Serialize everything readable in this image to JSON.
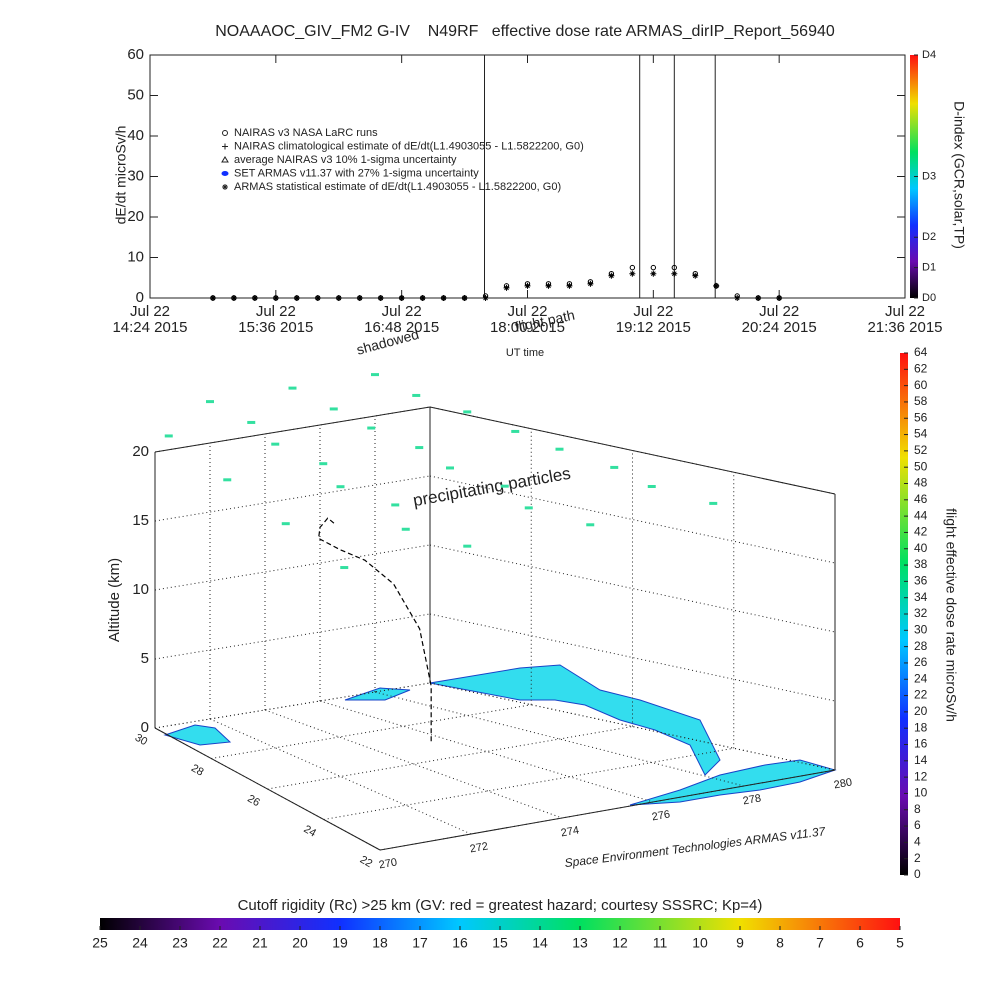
{
  "chart_data": [
    {
      "type": "line",
      "title": "NOAAAOC_GIV_FM2 G-IV    N49RF   effective dose rate ARMAS_dirIP_Report_56940",
      "ylabel": "dE/dt microSv/h",
      "xlabel": "UT time",
      "xlim": [
        14.4,
        21.6
      ],
      "xticks": [
        {
          "value": 14.4,
          "label": [
            "Jul 22",
            "14:24 2015"
          ]
        },
        {
          "value": 15.6,
          "label": [
            "Jul 22",
            "15:36 2015"
          ]
        },
        {
          "value": 16.8,
          "label": [
            "Jul 22",
            "16:48 2015"
          ]
        },
        {
          "value": 18.0,
          "label": [
            "Jul 22",
            "18:00 2015"
          ]
        },
        {
          "value": 19.2,
          "label": [
            "Jul 22",
            "19:12 2015"
          ]
        },
        {
          "value": 20.4,
          "label": [
            "Jul 22",
            "20:24 2015"
          ]
        },
        {
          "value": 21.6,
          "label": [
            "Jul 22",
            "21:36 2015"
          ]
        }
      ],
      "ylim": [
        0,
        60
      ],
      "yticks": [
        0,
        10,
        20,
        30,
        40,
        50,
        60
      ],
      "vlines": [
        17.59,
        19.07,
        19.4,
        19.79
      ],
      "legend_entries": [
        "NAIRAS v3 NASA LaRC runs",
        "NAIRAS climatological estimate of dE/dt(L1.4903055 - L1.5822200, G0)",
        "average NAIRAS v3 10% 1-sigma uncertainty",
        "SET ARMAS v11.37 with 27% 1-sigma uncertainty",
        "ARMAS statistical estimate of dE/dt(L1.4903055 - L1.5822200, G0)"
      ],
      "series": [
        {
          "color": "#000000",
          "marker": "circle",
          "x": [
            15.0,
            15.2,
            15.4,
            15.6,
            15.8,
            16.0,
            16.2,
            16.4,
            16.6,
            16.8,
            17.0,
            17.2,
            17.4,
            17.6,
            17.8,
            18.0,
            18.2,
            18.4,
            18.6,
            18.8,
            19.0,
            19.2,
            19.4,
            19.6,
            19.8,
            20.0,
            20.2,
            20.4
          ],
          "values": [
            0,
            0,
            0,
            0,
            0,
            0,
            0,
            0,
            0,
            0,
            0,
            0,
            0,
            0.5,
            3,
            3.5,
            3.5,
            3.5,
            4,
            6,
            7.5,
            7.5,
            7.5,
            6,
            3,
            0.5,
            0,
            0
          ]
        },
        {
          "color": "#000000",
          "marker": "star",
          "x": [
            15.0,
            15.2,
            15.4,
            15.6,
            15.8,
            16.0,
            16.2,
            16.4,
            16.6,
            16.8,
            17.0,
            17.2,
            17.4,
            17.6,
            17.8,
            18.0,
            18.2,
            18.4,
            18.6,
            18.8,
            19.0,
            19.2,
            19.4,
            19.6,
            19.8,
            20.0,
            20.2,
            20.4
          ],
          "values": [
            0,
            0,
            0,
            0,
            0,
            0,
            0,
            0,
            0,
            0,
            0,
            0,
            0,
            0,
            2.5,
            3,
            3,
            3,
            3.5,
            5.5,
            6,
            6,
            6,
            5.5,
            3,
            0,
            0,
            0
          ]
        }
      ],
      "annotations": [
        "shadowed",
        "flight path"
      ],
      "colorbar": {
        "label": "D-index (GCR,solar,TP)",
        "ticks": [
          {
            "value": 0,
            "label": "D0"
          },
          {
            "value": 7.5,
            "label": "D1"
          },
          {
            "value": 15,
            "label": "D2"
          },
          {
            "value": 30,
            "label": "D3"
          },
          {
            "value": 60,
            "label": "D4"
          }
        ]
      }
    },
    {
      "type": "scatter3d",
      "zlabel": "Altitude (km)",
      "zlim": [
        0,
        20
      ],
      "zticks": [
        0,
        5,
        10,
        15,
        20
      ],
      "xlim": [
        270,
        280
      ],
      "xticks": [
        270,
        272,
        274,
        276,
        278,
        280
      ],
      "ylim": [
        22,
        30
      ],
      "yticks": [
        22,
        24,
        26,
        28,
        30
      ],
      "annotations": [
        "precipitating particles",
        "Space Environment Technologies ARMAS v11.37"
      ],
      "path": {
        "color": "#000000",
        "x": [
          275.6,
          275.6,
          275.5,
          275.2,
          274.8,
          274.5,
          274.3,
          274.6,
          275.0,
          275.4,
          275.8,
          276.2
        ],
        "y": [
          27.0,
          27.0,
          27.2,
          27.6,
          28.0,
          28.4,
          28.8,
          29.0,
          29.2,
          29.4,
          29.6,
          29.8
        ],
        "z": [
          0,
          4,
          8,
          11,
          12.5,
          13,
          13.5,
          14,
          14,
          14,
          13.5,
          13
        ]
      },
      "particles": {
        "color": "#33e0a0",
        "x": [
          270.5,
          272,
          273.5,
          275,
          276.5,
          278,
          279.5,
          270.5,
          272,
          273.5,
          275,
          276.5,
          278,
          279.5,
          270.5,
          272,
          273.5,
          275,
          276.5,
          278,
          279.5,
          270.5,
          272,
          273.5,
          275,
          276.5,
          278,
          279.5
        ],
        "y": [
          30,
          30,
          30,
          30,
          30,
          30,
          30,
          28,
          28,
          28,
          28,
          28,
          28,
          28,
          26,
          26,
          26,
          26,
          26,
          26,
          26,
          24,
          24,
          24,
          24,
          24,
          24,
          24
        ],
        "z": [
          21,
          23,
          21,
          23,
          21,
          23,
          21,
          20,
          22,
          20,
          22,
          20,
          22,
          20,
          19,
          21,
          19,
          21,
          19,
          21,
          19,
          18,
          20,
          18,
          20,
          18,
          20,
          18
        ]
      },
      "colorbar": {
        "label": "flight effective dose rate microSv/h",
        "lim": [
          0,
          64
        ],
        "ticks": [
          0,
          2,
          4,
          6,
          8,
          10,
          12,
          14,
          16,
          18,
          20,
          22,
          24,
          26,
          28,
          30,
          32,
          34,
          36,
          38,
          40,
          42,
          44,
          46,
          48,
          50,
          52,
          54,
          56,
          58,
          60,
          62,
          64
        ]
      },
      "bottom_colorbar": {
        "title": "Cutoff rigidity (Rc) >25 km (GV: red = greatest hazard; courtesy SSSRC; Kp=4)",
        "lim": [
          25,
          5
        ],
        "ticks": [
          25,
          24,
          23,
          22,
          21,
          20,
          19,
          18,
          17,
          16,
          15,
          14,
          13,
          12,
          11,
          10,
          9,
          8,
          7,
          6,
          5
        ]
      }
    }
  ]
}
